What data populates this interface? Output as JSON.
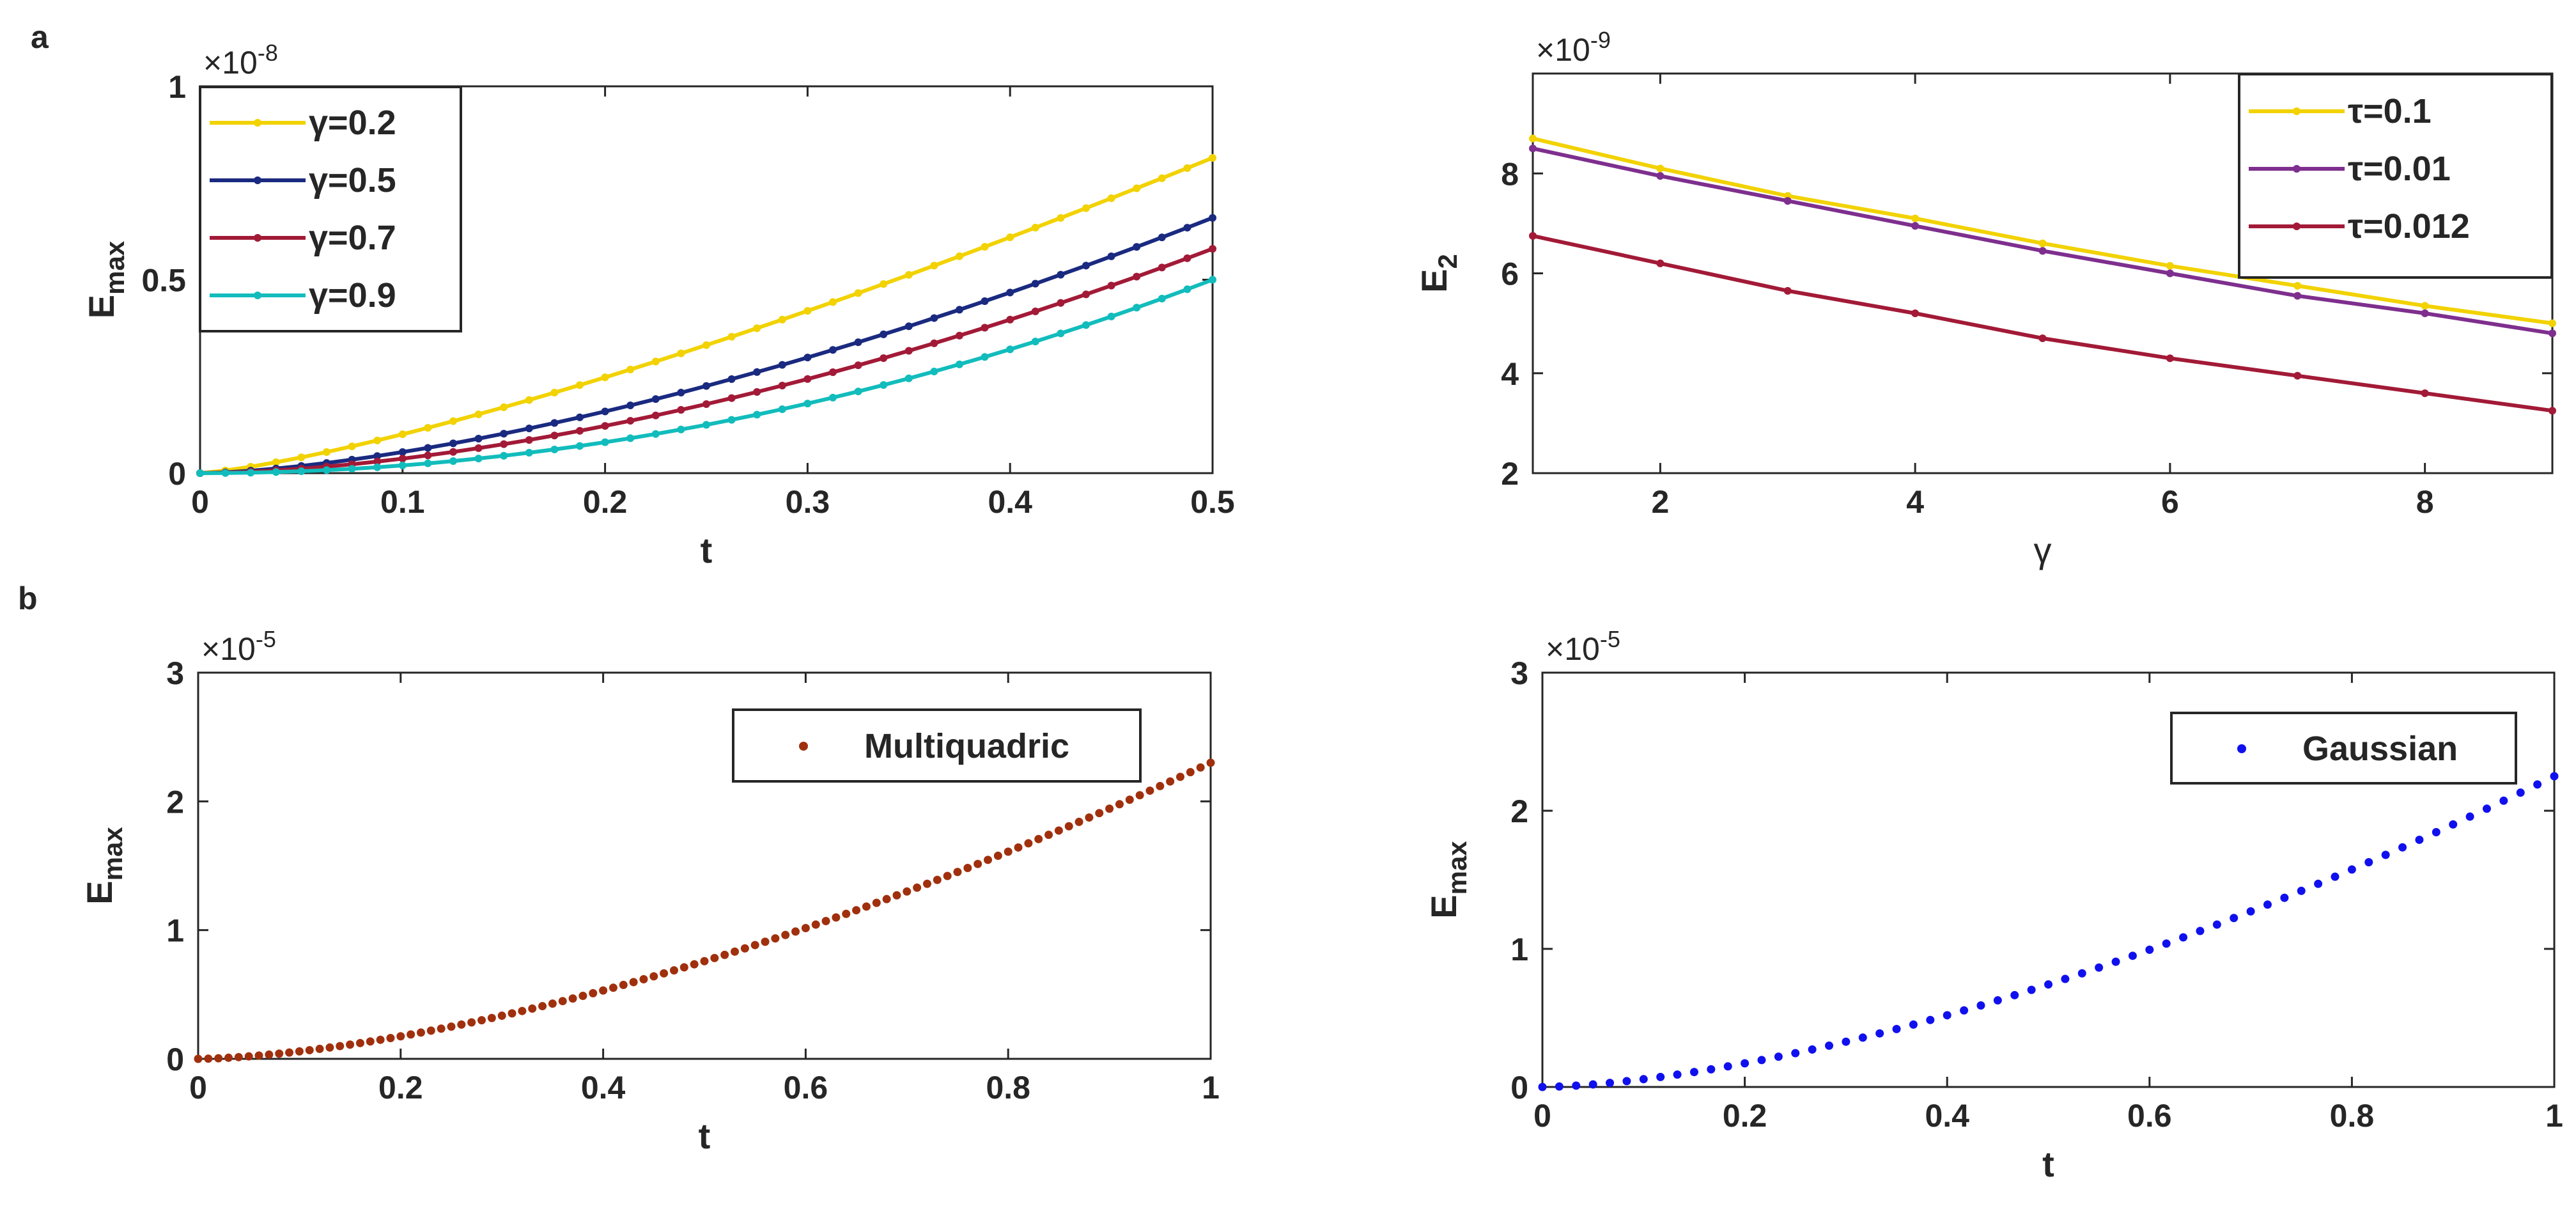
{
  "figure": {
    "panel_a_label": "a",
    "panel_b_label": "b"
  },
  "chart_data": [
    {
      "id": "a-left",
      "type": "line",
      "markers": true,
      "xlabel": "t",
      "ylabel": "E",
      "ylabel_sub": "max",
      "exponent": "×10",
      "exponent_power": "-8",
      "xlim": [
        0,
        0.5
      ],
      "ylim": [
        0,
        1
      ],
      "xticks": [
        0,
        0.1,
        0.2,
        0.3,
        0.4,
        0.5
      ],
      "xtick_labels": [
        "0",
        "0.1",
        "0.2",
        "0.3",
        "0.4",
        "0.5"
      ],
      "yticks": [
        0,
        0.5,
        1
      ],
      "ytick_labels": [
        "0",
        "0.5",
        "1"
      ],
      "legend_position": "top-left",
      "series": [
        {
          "name": "γ=0.2",
          "color": "#f2d200",
          "x_start": 0,
          "x_end": 0.5,
          "points": 41,
          "y_end": 0.815,
          "power": 1.3
        },
        {
          "name": "γ=0.5",
          "color": "#1a2a80",
          "x_start": 0,
          "x_end": 0.5,
          "points": 41,
          "y_end": 0.66,
          "power": 1.55
        },
        {
          "name": "γ=0.7",
          "color": "#a21a37",
          "x_start": 0,
          "x_end": 0.5,
          "points": 41,
          "y_end": 0.58,
          "power": 1.7
        },
        {
          "name": "γ=0.9",
          "color": "#12bcbc",
          "x_start": 0,
          "x_end": 0.5,
          "points": 41,
          "y_end": 0.5,
          "power": 2.0
        }
      ]
    },
    {
      "id": "a-right",
      "type": "line",
      "markers": true,
      "xlabel": "γ",
      "ylabel": "E",
      "ylabel_sub": "2",
      "exponent": "×10",
      "exponent_power": "-9",
      "xlim": [
        1,
        9
      ],
      "ylim": [
        2,
        10
      ],
      "xticks": [
        2,
        4,
        6,
        8
      ],
      "xtick_labels": [
        "2",
        "4",
        "6",
        "8"
      ],
      "yticks": [
        2,
        4,
        6,
        8
      ],
      "ytick_labels": [
        "2",
        "4",
        "6",
        "8"
      ],
      "legend_position": "top-right",
      "series": [
        {
          "name": "τ=0.1",
          "color": "#f2d200",
          "x": [
            1,
            2,
            3,
            4,
            5,
            6,
            7,
            8,
            9
          ],
          "y": [
            8.7,
            8.1,
            7.55,
            7.1,
            6.6,
            6.15,
            5.75,
            5.35,
            5.0
          ]
        },
        {
          "name": "τ=0.01",
          "color": "#7e2f8e",
          "x": [
            1,
            2,
            3,
            4,
            5,
            6,
            7,
            8,
            9
          ],
          "y": [
            8.5,
            7.95,
            7.45,
            6.95,
            6.45,
            6.0,
            5.55,
            5.2,
            4.8
          ]
        },
        {
          "name": "τ=0.012",
          "color": "#a21a37",
          "x": [
            1,
            2,
            3,
            4,
            5,
            6,
            7,
            8,
            9
          ],
          "y": [
            6.75,
            6.2,
            5.65,
            5.2,
            4.7,
            4.3,
            3.95,
            3.6,
            3.25
          ]
        }
      ]
    },
    {
      "id": "b-left",
      "type": "scatter",
      "xlabel": "t",
      "ylabel": "E",
      "ylabel_sub": "max",
      "exponent": "×10",
      "exponent_power": "-5",
      "xlim": [
        0,
        1
      ],
      "ylim": [
        0,
        3
      ],
      "xticks": [
        0,
        0.2,
        0.4,
        0.6,
        0.8,
        1
      ],
      "xtick_labels": [
        "0",
        "0.2",
        "0.4",
        "0.6",
        "0.8",
        "1"
      ],
      "yticks": [
        0,
        1,
        2,
        3
      ],
      "ytick_labels": [
        "0",
        "1",
        "2",
        "3"
      ],
      "legend_position": "top-right",
      "series": [
        {
          "name": "Multiquadric",
          "color": "#a0300d",
          "x_start": 0,
          "x_end": 1,
          "points": 101,
          "y_end": 2.3,
          "power": 1.6
        }
      ]
    },
    {
      "id": "b-right",
      "type": "scatter",
      "xlabel": "t",
      "ylabel": "E",
      "ylabel_sub": "max",
      "exponent": "×10",
      "exponent_power": "-5",
      "xlim": [
        0,
        1
      ],
      "ylim": [
        0,
        3
      ],
      "xticks": [
        0,
        0.2,
        0.4,
        0.6,
        0.8,
        1
      ],
      "xtick_labels": [
        "0",
        "0.2",
        "0.4",
        "0.6",
        "0.8",
        "1"
      ],
      "yticks": [
        0,
        1,
        2,
        3
      ],
      "ytick_labels": [
        "0",
        "1",
        "2",
        "3"
      ],
      "legend_position": "top-right",
      "series": [
        {
          "name": "Gaussian",
          "color": "#1010ee",
          "x_start": 0,
          "x_end": 1,
          "points": 61,
          "y_end": 2.25,
          "power": 1.6
        }
      ]
    }
  ]
}
